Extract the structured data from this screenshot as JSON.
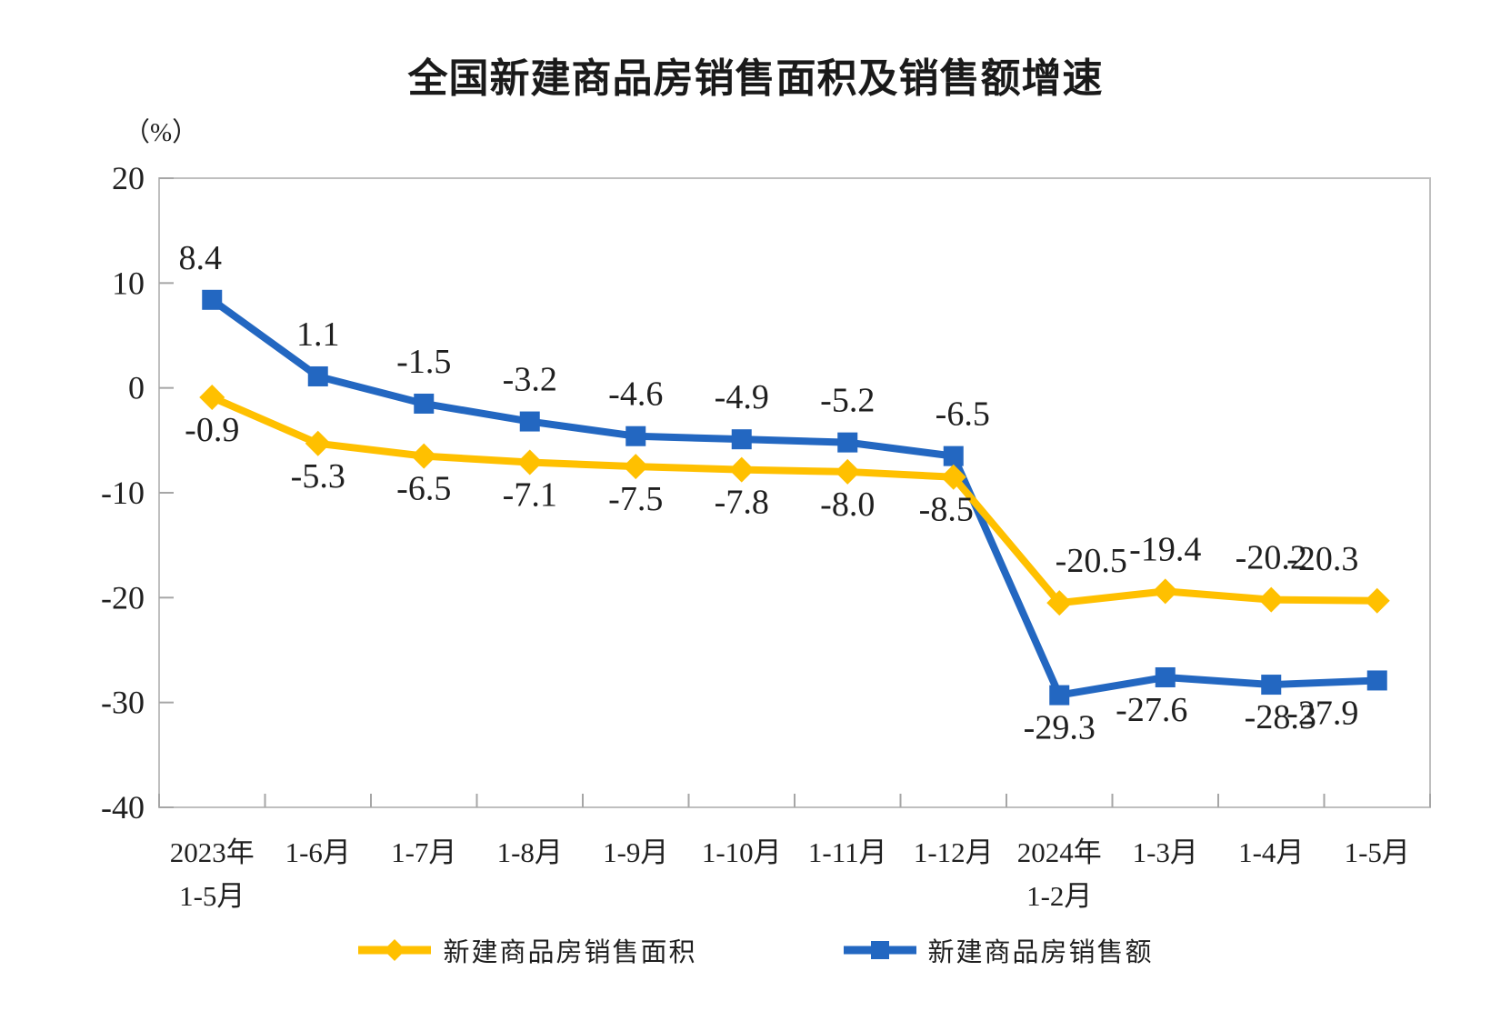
{
  "chart_data": {
    "type": "line",
    "title": "全国新建商品房销售面积及销售额增速",
    "unit": "（%）",
    "categories": [
      "2023年\n1-5月",
      "1-6月",
      "1-7月",
      "1-8月",
      "1-9月",
      "1-10月",
      "1-11月",
      "1-12月",
      "2024年\n1-2月",
      "1-3月",
      "1-4月",
      "1-5月"
    ],
    "series": [
      {
        "name": "新建商品房销售面积",
        "color": "#FFC000",
        "marker": "diamond",
        "values": [
          -0.9,
          -5.3,
          -6.5,
          -7.1,
          -7.5,
          -7.8,
          -8.0,
          -8.5,
          -20.5,
          -19.4,
          -20.2,
          -20.3
        ],
        "label_side": [
          "below",
          "below",
          "below",
          "below",
          "below",
          "below",
          "below",
          "below",
          "above",
          "above",
          "above",
          "above"
        ],
        "label_dx": [
          0,
          0,
          0,
          0,
          0,
          0,
          0,
          -8,
          35,
          0,
          0,
          -60
        ]
      },
      {
        "name": "新建商品房销售额",
        "color": "#2367C1",
        "marker": "square",
        "values": [
          8.4,
          1.1,
          -1.5,
          -3.2,
          -4.6,
          -4.9,
          -5.2,
          -6.5,
          -29.3,
          -27.6,
          -28.3,
          -27.9
        ],
        "label_side": [
          "above",
          "above",
          "above",
          "above",
          "above",
          "above",
          "above",
          "above",
          "below",
          "below",
          "below",
          "below"
        ],
        "label_dx": [
          -13,
          0,
          0,
          0,
          0,
          0,
          0,
          10,
          0,
          -15,
          10,
          -60
        ]
      }
    ],
    "yticks": [
      20,
      10,
      0,
      -10,
      -20,
      -30,
      -40
    ],
    "ylim": [
      -40,
      20
    ],
    "xlabel": "",
    "ylabel": "（%）",
    "grid": false,
    "legend_position": "bottom",
    "axis_color": "#BFBFBF",
    "tick_color": "#A6A6A6",
    "text_color": "#1f1f1f"
  }
}
